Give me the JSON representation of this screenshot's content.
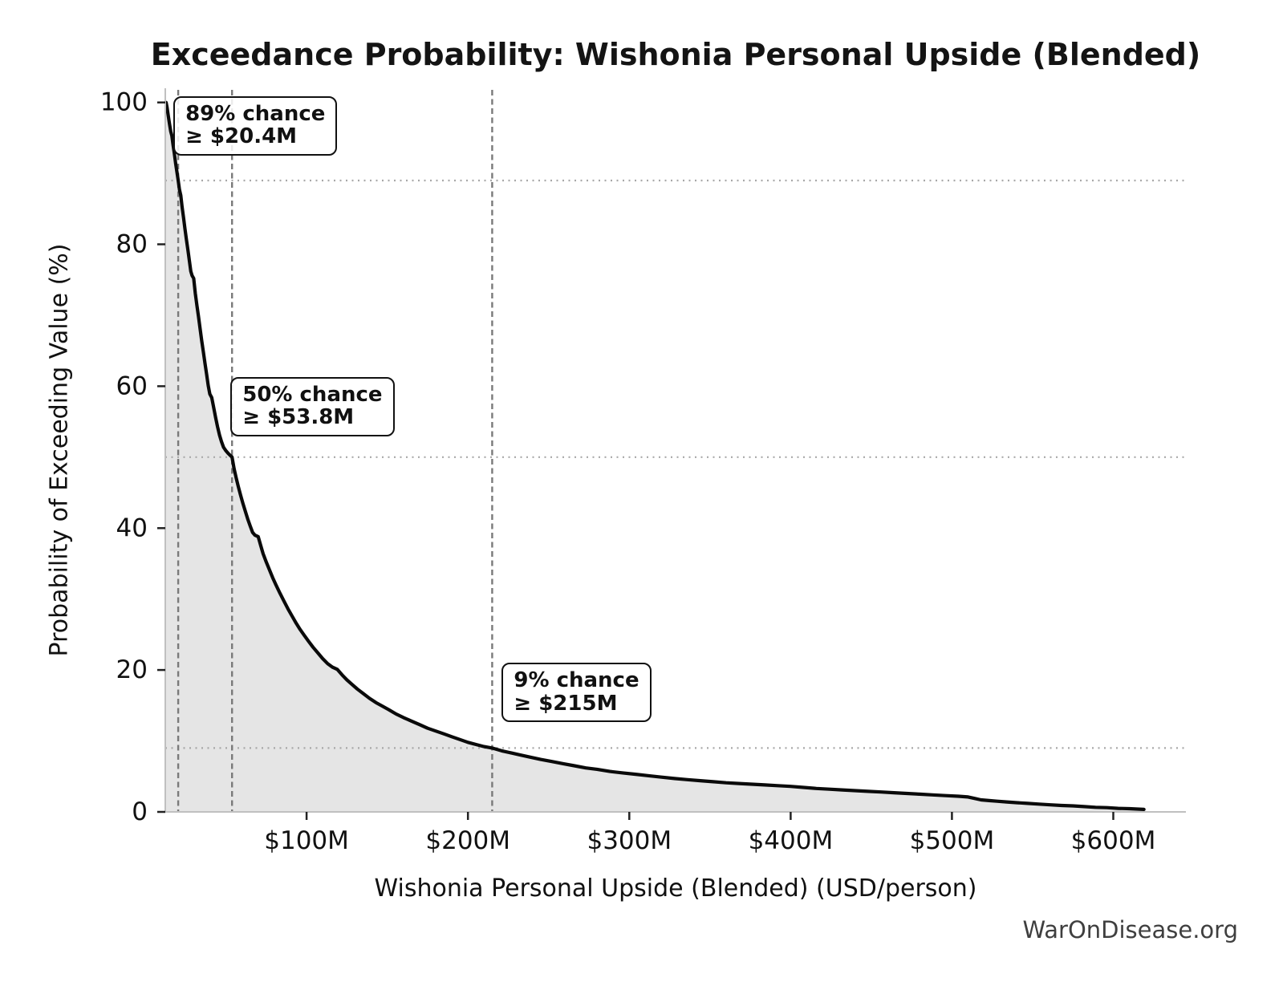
{
  "title": "Exceedance Probability: Wishonia Personal Upside (Blended)",
  "watermark": "WarOnDisease.org",
  "colors": {
    "curve": "#0a0a0a",
    "fill": "#e5e5e5",
    "dashed_line": "#7a7a7a",
    "dotted_line": "#a8a8a8",
    "spine": "#c0c0c0",
    "tick_mark": "#222222",
    "text": "#111111",
    "watermark_text": "#3f3f3f"
  },
  "chart_data": {
    "type": "line",
    "title": "Exceedance Probability: Wishonia Personal Upside (Blended)",
    "xlabel": "Wishonia Personal Upside (Blended) (USD/person)",
    "ylabel": "Probability of Exceeding Value (%)",
    "x_unit": "USD millions per person",
    "xlim": [
      12.4,
      645
    ],
    "ylim": [
      0,
      102
    ],
    "grid": false,
    "legend": "none",
    "fill_under_curve": true,
    "x_ticks": [
      {
        "value": 100,
        "label": "$100M"
      },
      {
        "value": 200,
        "label": "$200M"
      },
      {
        "value": 300,
        "label": "$300M"
      },
      {
        "value": 400,
        "label": "$400M"
      },
      {
        "value": 500,
        "label": "$500M"
      },
      {
        "value": 600,
        "label": "$600M"
      }
    ],
    "y_ticks": [
      {
        "value": 0,
        "label": "0"
      },
      {
        "value": 20,
        "label": "20"
      },
      {
        "value": 40,
        "label": "40"
      },
      {
        "value": 60,
        "label": "60"
      },
      {
        "value": 80,
        "label": "80"
      },
      {
        "value": 100,
        "label": "100"
      }
    ],
    "annotations": [
      {
        "prob_label": "89% chance",
        "value_label": "≥ $20.4M",
        "x": 20.4,
        "prob": 89
      },
      {
        "prob_label": "50% chance",
        "value_label": "≥ $53.8M",
        "x": 53.8,
        "prob": 50
      },
      {
        "prob_label": "9% chance",
        "value_label": "≥ $215M",
        "x": 215,
        "prob": 9
      }
    ],
    "points": [
      [
        12.9,
        100
      ],
      [
        13.5,
        99.3
      ],
      [
        14.2,
        98.2
      ],
      [
        15,
        97
      ],
      [
        15.8,
        95.9
      ],
      [
        16.5,
        95.3
      ],
      [
        17.2,
        94
      ],
      [
        18,
        92.8
      ],
      [
        18.8,
        91.4
      ],
      [
        19.6,
        90.2
      ],
      [
        20.4,
        89
      ],
      [
        21.2,
        87.7
      ],
      [
        22,
        86.9
      ],
      [
        22.8,
        85.3
      ],
      [
        23.7,
        83.8
      ],
      [
        24.6,
        82.2
      ],
      [
        25.5,
        80.7
      ],
      [
        26.4,
        79.2
      ],
      [
        27.3,
        77.7
      ],
      [
        28.2,
        76.2
      ],
      [
        29,
        75.6
      ],
      [
        30,
        75.2
      ],
      [
        31,
        73.1
      ],
      [
        32,
        71.4
      ],
      [
        33,
        69.8
      ],
      [
        34,
        68.1
      ],
      [
        35,
        66.4
      ],
      [
        36,
        64.8
      ],
      [
        37,
        63.2
      ],
      [
        38,
        61.7
      ],
      [
        39,
        60.1
      ],
      [
        40,
        58.9
      ],
      [
        41.2,
        58.4
      ],
      [
        42.4,
        57
      ],
      [
        43.6,
        55.6
      ],
      [
        44.8,
        54.3
      ],
      [
        46,
        53.1
      ],
      [
        47.2,
        52.2
      ],
      [
        48.5,
        51.4
      ],
      [
        50,
        50.9
      ],
      [
        51.5,
        50.5
      ],
      [
        53.8,
        50
      ],
      [
        55,
        48.4
      ],
      [
        56.3,
        47.1
      ],
      [
        57.6,
        45.9
      ],
      [
        59,
        44.7
      ],
      [
        60.5,
        43.5
      ],
      [
        62,
        42.4
      ],
      [
        63.5,
        41.3
      ],
      [
        65,
        40.3
      ],
      [
        66.5,
        39.4
      ],
      [
        68,
        39
      ],
      [
        70,
        38.8
      ],
      [
        71.5,
        37.6
      ],
      [
        73,
        36.4
      ],
      [
        75,
        35.2
      ],
      [
        77,
        34.1
      ],
      [
        79,
        33
      ],
      [
        81,
        32
      ],
      [
        83.5,
        30.8
      ],
      [
        86,
        29.7
      ],
      [
        88.5,
        28.6
      ],
      [
        91,
        27.6
      ],
      [
        93.5,
        26.6
      ],
      [
        96,
        25.7
      ],
      [
        98.5,
        24.9
      ],
      [
        101,
        24.1
      ],
      [
        104,
        23.2
      ],
      [
        107,
        22.4
      ],
      [
        110,
        21.6
      ],
      [
        113,
        20.9
      ],
      [
        116,
        20.4
      ],
      [
        119,
        20.1
      ],
      [
        122,
        19.3
      ],
      [
        125,
        18.6
      ],
      [
        128,
        18
      ],
      [
        131.5,
        17.3
      ],
      [
        135,
        16.7
      ],
      [
        139,
        16
      ],
      [
        143,
        15.4
      ],
      [
        147,
        14.9
      ],
      [
        151,
        14.4
      ],
      [
        155.5,
        13.8
      ],
      [
        160,
        13.3
      ],
      [
        165,
        12.8
      ],
      [
        170,
        12.3
      ],
      [
        175,
        11.8
      ],
      [
        180,
        11.4
      ],
      [
        185,
        11
      ],
      [
        190,
        10.6
      ],
      [
        195,
        10.2
      ],
      [
        200,
        9.8
      ],
      [
        205,
        9.5
      ],
      [
        210,
        9.2
      ],
      [
        215,
        9
      ],
      [
        221,
        8.6
      ],
      [
        227,
        8.3
      ],
      [
        233,
        8
      ],
      [
        239,
        7.7
      ],
      [
        245,
        7.4
      ],
      [
        252,
        7.1
      ],
      [
        259,
        6.8
      ],
      [
        266,
        6.5
      ],
      [
        273,
        6.2
      ],
      [
        280,
        6
      ],
      [
        288,
        5.7
      ],
      [
        296,
        5.5
      ],
      [
        304,
        5.3
      ],
      [
        312,
        5.1
      ],
      [
        320,
        4.9
      ],
      [
        328,
        4.7
      ],
      [
        336,
        4.55
      ],
      [
        344,
        4.4
      ],
      [
        352,
        4.25
      ],
      [
        360,
        4.1
      ],
      [
        368,
        4
      ],
      [
        376,
        3.9
      ],
      [
        384,
        3.8
      ],
      [
        392,
        3.7
      ],
      [
        400,
        3.6
      ],
      [
        408,
        3.45
      ],
      [
        416,
        3.3
      ],
      [
        424,
        3.2
      ],
      [
        432,
        3.1
      ],
      [
        440,
        3
      ],
      [
        448,
        2.9
      ],
      [
        456,
        2.8
      ],
      [
        464,
        2.7
      ],
      [
        472,
        2.6
      ],
      [
        480,
        2.5
      ],
      [
        488,
        2.4
      ],
      [
        496,
        2.3
      ],
      [
        504,
        2.2
      ],
      [
        510,
        2.1
      ],
      [
        514,
        1.9
      ],
      [
        518,
        1.7
      ],
      [
        523,
        1.6
      ],
      [
        528,
        1.5
      ],
      [
        534,
        1.4
      ],
      [
        540,
        1.3
      ],
      [
        547,
        1.2
      ],
      [
        554,
        1.1
      ],
      [
        561,
        1
      ],
      [
        568,
        0.9
      ],
      [
        575,
        0.85
      ],
      [
        582,
        0.75
      ],
      [
        589,
        0.65
      ],
      [
        596,
        0.6
      ],
      [
        603,
        0.5
      ],
      [
        610,
        0.45
      ],
      [
        615,
        0.4
      ],
      [
        619,
        0.35
      ]
    ]
  }
}
